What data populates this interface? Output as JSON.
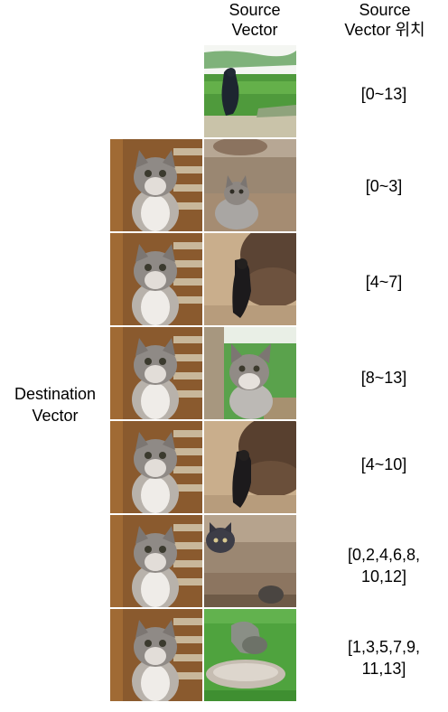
{
  "headers": {
    "source_vector": "Source\nVector",
    "source_vector_position": "Source\nVector 위치"
  },
  "side_label": "Destination\nVector",
  "rows": [
    {
      "position": "[0~13]",
      "source_image": "crow-on-grass-photo",
      "destination_image": null
    },
    {
      "position": "[0~3]",
      "source_image": "tabby-cat-indoors-photo",
      "destination_image": "tabby-cat-looking-up-photo"
    },
    {
      "position": "[4~7]",
      "source_image": "black-bird-brown-bush-photo",
      "destination_image": "tabby-cat-looking-up-photo"
    },
    {
      "position": "[8~13]",
      "source_image": "tabby-cat-on-green-photo",
      "destination_image": "tabby-cat-looking-up-photo"
    },
    {
      "position": "[4~10]",
      "source_image": "black-bird-brown-bush-photo",
      "destination_image": "tabby-cat-looking-up-photo"
    },
    {
      "position": "[0,2,4,6,8,\n10,12]",
      "source_image": "dark-kitten-brown-room-photo",
      "destination_image": "tabby-cat-looking-up-photo"
    },
    {
      "position": "[1,3,5,7,9,\n11,13]",
      "source_image": "gray-cat-green-lawn-photo",
      "destination_image": "tabby-cat-looking-up-photo"
    }
  ]
}
